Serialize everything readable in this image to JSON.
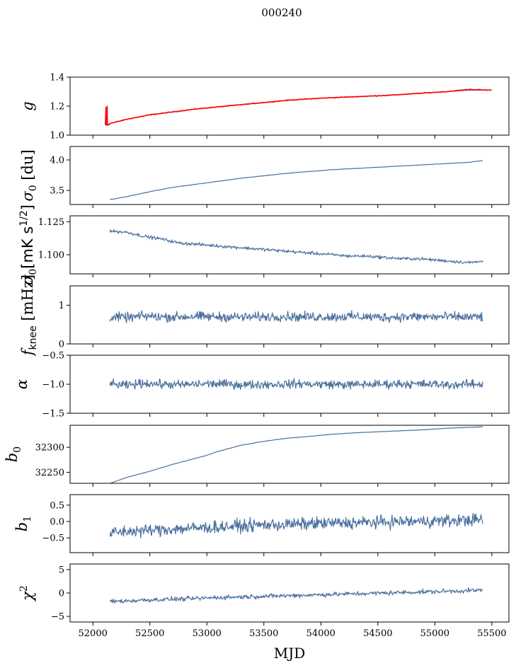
{
  "figure": {
    "title": "000240",
    "xlabel": "MJD",
    "colors": {
      "series": "#4c72a0",
      "highlight": "#ff0000"
    }
  },
  "chart_data": [
    {
      "type": "line",
      "ylabel": "g",
      "xlim": [
        51800,
        55650
      ],
      "ylim": [
        1.0,
        1.4
      ],
      "yticks": [
        1.0,
        1.2,
        1.4
      ],
      "ytick_labels": [
        "1.0",
        "1.2",
        "1.4"
      ],
      "series": [
        {
          "x": [
            52110,
            52125,
            52135,
            52150,
            52200,
            52300,
            52400,
            52500,
            52700,
            52900,
            53100,
            53300,
            53500,
            53700,
            54000,
            54300,
            54600,
            54900,
            55100,
            55300,
            55500
          ],
          "values": [
            1.07,
            1.07,
            1.075,
            1.08,
            1.09,
            1.11,
            1.125,
            1.14,
            1.16,
            1.18,
            1.195,
            1.21,
            1.225,
            1.24,
            1.255,
            1.265,
            1.275,
            1.29,
            1.3,
            1.31,
            1.31
          ]
        },
        {
          "x": [
            52110,
            52115,
            52120,
            52125,
            52128,
            52135,
            52150,
            52200,
            52300,
            52400,
            52500,
            52700,
            52900,
            53100,
            53300,
            53500,
            53700,
            54000,
            54300,
            54600,
            54900,
            55100,
            55300,
            55500
          ],
          "values": [
            1.07,
            1.19,
            1.07,
            1.2,
            1.07,
            1.07,
            1.08,
            1.09,
            1.11,
            1.125,
            1.14,
            1.16,
            1.18,
            1.195,
            1.21,
            1.225,
            1.24,
            1.255,
            1.265,
            1.275,
            1.29,
            1.3,
            1.315,
            1.31
          ]
        }
      ]
    },
    {
      "type": "line",
      "ylabel": "σ0 [du]",
      "xlim": [
        51800,
        55650
      ],
      "ylim": [
        3.27,
        4.22
      ],
      "yticks": [
        3.5,
        4.0
      ],
      "ytick_labels": [
        "3.5",
        "4.0"
      ],
      "series": [
        {
          "x": [
            52150,
            52300,
            52500,
            52700,
            52900,
            53100,
            53300,
            53500,
            53700,
            53900,
            54100,
            54300,
            54500,
            54700,
            54900,
            55100,
            55300,
            55420
          ],
          "values": [
            3.35,
            3.4,
            3.48,
            3.55,
            3.6,
            3.65,
            3.7,
            3.74,
            3.78,
            3.81,
            3.84,
            3.86,
            3.88,
            3.9,
            3.92,
            3.94,
            3.96,
            3.99
          ]
        }
      ]
    },
    {
      "type": "line",
      "ylabel": "σ0[mK s^1/2]",
      "xlim": [
        51800,
        55650
      ],
      "ylim": [
        1.0855,
        1.1295
      ],
      "yticks": [
        1.1,
        1.125
      ],
      "ytick_labels": [
        "1.100",
        "1.125"
      ],
      "series": [
        {
          "x": [
            52150,
            52300,
            52450,
            52600,
            52750,
            52900,
            53050,
            53200,
            53350,
            53500,
            53650,
            53800,
            53950,
            54100,
            54250,
            54400,
            54550,
            54700,
            54850,
            55000,
            55150,
            55300,
            55420
          ],
          "values": [
            1.118,
            1.117,
            1.114,
            1.112,
            1.109,
            1.108,
            1.107,
            1.106,
            1.105,
            1.104,
            1.103,
            1.102,
            1.101,
            1.1,
            1.099,
            1.099,
            1.098,
            1.097,
            1.097,
            1.096,
            1.095,
            1.094,
            1.095
          ]
        }
      ]
    },
    {
      "type": "line",
      "ylabel": "f_knee [mHz]",
      "xlim": [
        51800,
        55650
      ],
      "ylim": [
        0,
        1.5
      ],
      "yticks": [
        0,
        1
      ],
      "ytick_labels": [
        "0",
        "1"
      ],
      "series": [
        {
          "x": [
            52150,
            52300,
            52450,
            52600,
            52750,
            52900,
            53050,
            53200,
            53350,
            53500,
            53650,
            53800,
            53950,
            54100,
            54250,
            54400,
            54550,
            54700,
            54850,
            55000,
            55150,
            55300,
            55420
          ],
          "values": [
            0.7,
            0.68,
            0.72,
            0.7,
            0.7,
            0.71,
            0.7,
            0.7,
            0.69,
            0.7,
            0.71,
            0.7,
            0.7,
            0.7,
            0.71,
            0.7,
            0.69,
            0.7,
            0.7,
            0.7,
            0.7,
            0.69,
            0.7
          ]
        }
      ]
    },
    {
      "type": "line",
      "ylabel": "α",
      "xlim": [
        51800,
        55650
      ],
      "ylim": [
        -1.5,
        -0.5
      ],
      "yticks": [
        -1.5,
        -1.0,
        -0.5
      ],
      "ytick_labels": [
        "−1.5",
        "−1.0",
        "−0.5"
      ],
      "series": [
        {
          "x": [
            52150,
            52300,
            52450,
            52600,
            52750,
            52900,
            53050,
            53200,
            53350,
            53500,
            53650,
            53800,
            53950,
            54100,
            54250,
            54400,
            54550,
            54700,
            54850,
            55000,
            55150,
            55300,
            55420
          ],
          "values": [
            -1.0,
            -1.02,
            -0.98,
            -1.0,
            -1.01,
            -1.0,
            -0.99,
            -1.0,
            -1.01,
            -1.0,
            -1.0,
            -0.99,
            -1.0,
            -1.0,
            -1.01,
            -1.0,
            -1.0,
            -0.99,
            -1.0,
            -1.0,
            -1.01,
            -1.0,
            -1.0
          ]
        }
      ]
    },
    {
      "type": "line",
      "ylabel": "b0",
      "xlim": [
        51800,
        55650
      ],
      "ylim": [
        32228,
        32344
      ],
      "yticks": [
        32250,
        32300
      ],
      "ytick_labels": [
        "32250",
        "32300"
      ],
      "series": [
        {
          "x": [
            52150,
            52300,
            52500,
            52700,
            52900,
            53000,
            53100,
            53300,
            53500,
            53700,
            53900,
            54100,
            54300,
            54500,
            54700,
            54900,
            55100,
            55300,
            55420
          ],
          "values": [
            32228,
            32240,
            32252,
            32266,
            32278,
            32284,
            32292,
            32304,
            32312,
            32318,
            32322,
            32326,
            32329,
            32331,
            32333,
            32335,
            32338,
            32340,
            32341
          ]
        }
      ]
    },
    {
      "type": "line",
      "ylabel": "b1",
      "xlim": [
        51800,
        55650
      ],
      "ylim": [
        -0.95,
        0.82
      ],
      "yticks": [
        -0.5,
        0.0,
        0.5
      ],
      "ytick_labels": [
        "−0.5",
        "0.0",
        "0.5"
      ],
      "series": [
        {
          "x": [
            52150,
            52300,
            52450,
            52600,
            52750,
            52900,
            53050,
            53200,
            53350,
            53500,
            53650,
            53800,
            53950,
            54100,
            54250,
            54400,
            54550,
            54700,
            54850,
            55000,
            55150,
            55300,
            55420
          ],
          "values": [
            -0.35,
            -0.3,
            -0.28,
            -0.25,
            -0.22,
            -0.2,
            -0.18,
            -0.15,
            -0.13,
            -0.1,
            -0.1,
            -0.08,
            -0.06,
            -0.05,
            -0.04,
            -0.03,
            -0.02,
            0.0,
            0.0,
            0.02,
            0.02,
            0.05,
            0.05
          ]
        }
      ]
    },
    {
      "type": "line",
      "ylabel": "χ²",
      "xlim": [
        51800,
        55650
      ],
      "ylim": [
        -6.2,
        6.2
      ],
      "yticks": [
        -5,
        0,
        5
      ],
      "ytick_labels": [
        "−5",
        "0",
        "5"
      ],
      "xticks": [
        52000,
        52500,
        53000,
        53500,
        54000,
        54500,
        55000,
        55500
      ],
      "xtick_labels": [
        "52000",
        "52500",
        "53000",
        "53500",
        "54000",
        "54500",
        "55000",
        "55500"
      ],
      "series": [
        {
          "x": [
            52150,
            52300,
            52450,
            52600,
            52750,
            52900,
            53050,
            53200,
            53350,
            53500,
            53650,
            53800,
            53950,
            54100,
            54250,
            54400,
            54550,
            54700,
            54850,
            55000,
            55150,
            55300,
            55420
          ],
          "values": [
            -1.8,
            -1.7,
            -1.5,
            -1.4,
            -1.3,
            -1.2,
            -1.0,
            -0.9,
            -0.8,
            -0.7,
            -0.6,
            -0.5,
            -0.4,
            -0.3,
            -0.2,
            -0.1,
            0.0,
            0.1,
            0.2,
            0.3,
            0.4,
            0.5,
            0.6
          ]
        }
      ]
    }
  ]
}
